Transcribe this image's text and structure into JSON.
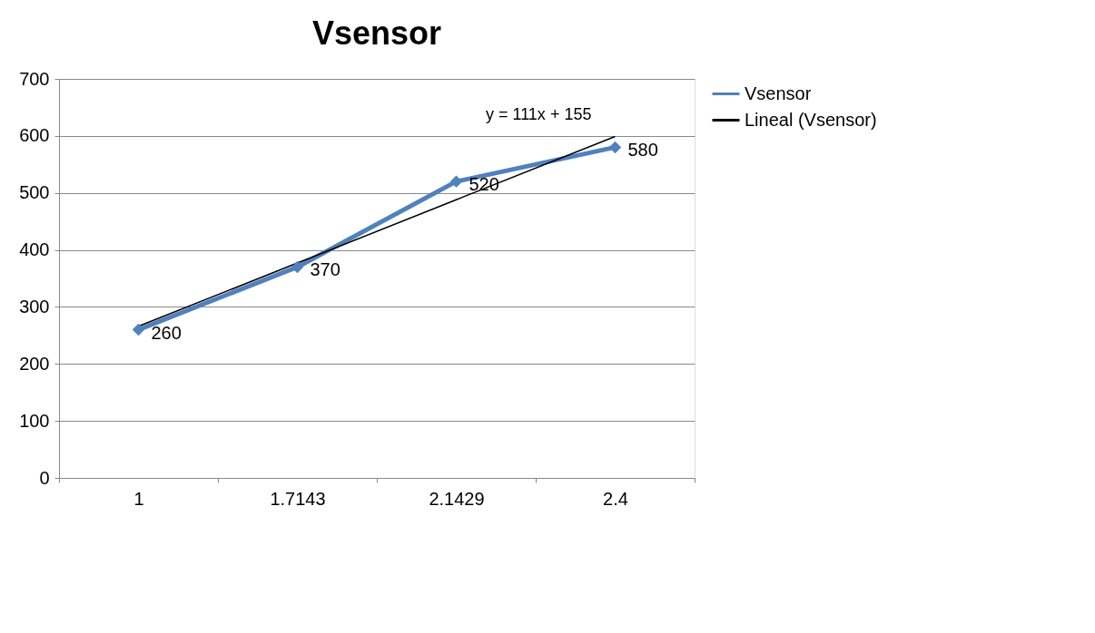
{
  "chart_data": {
    "type": "line",
    "title": "Vsensor",
    "categories": [
      "1",
      "1.7143",
      "2.1429",
      "2.4"
    ],
    "series": [
      {
        "name": "Vsensor",
        "color": "#4f81bd",
        "values": [
          260,
          370,
          520,
          580
        ],
        "marker": "diamond",
        "data_labels": true
      },
      {
        "name": "Lineal (Vsensor)",
        "color": "#000000",
        "values": [
          266,
          377,
          488,
          599
        ],
        "marker": "none"
      }
    ],
    "ylim": [
      0,
      700
    ],
    "yticks": [
      0,
      100,
      200,
      300,
      400,
      500,
      600,
      700
    ],
    "grid": "y",
    "legend": "right",
    "line_style": "solid",
    "annotations": [
      "y = 111x + 155"
    ]
  }
}
